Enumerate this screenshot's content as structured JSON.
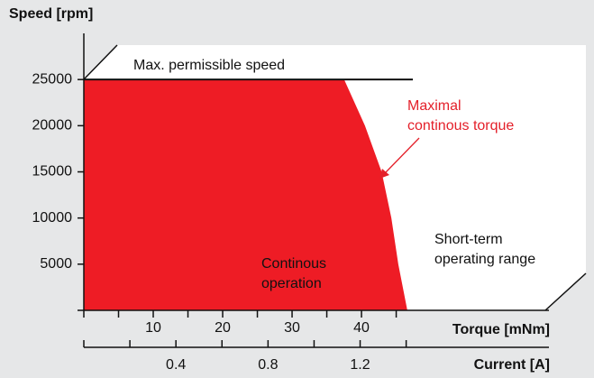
{
  "chart_data": {
    "type": "area",
    "ylabel": "Speed [rpm]",
    "xlabel": "Torque [mNm]",
    "x2label": "Current [A]",
    "ylim": [
      0,
      30000
    ],
    "yticks": [
      5000,
      10000,
      15000,
      20000,
      25000
    ],
    "xlim": [
      0,
      67
    ],
    "xticks": [
      10,
      20,
      30,
      40
    ],
    "xminorticks": [
      5,
      15,
      25,
      35,
      45
    ],
    "x2lim": [
      0,
      2.02
    ],
    "x2ticks": [
      0.4,
      0.8,
      1.2
    ],
    "x2minorticks": [
      0.2,
      0.6,
      1.0,
      1.4
    ],
    "series": [
      {
        "name": "Continous operation",
        "label_lines": [
          "Continous",
          "operation"
        ],
        "color": "#ee1c25",
        "x": [
          0,
          0,
          37.5,
          40.5,
          42.9,
          44.3,
          45.3,
          46.6
        ],
        "values": [
          0,
          25000,
          25000,
          20000,
          15000,
          10000,
          5000,
          0
        ]
      }
    ],
    "max_speed": {
      "label": "Max. permissible speed",
      "value": 25000,
      "x_end": 47.4
    },
    "annotations": [
      {
        "lines": [
          "Maximal",
          "continous torque"
        ],
        "color": "#e4202a"
      },
      {
        "lines": [
          "Short-term",
          "operating range"
        ]
      }
    ]
  }
}
